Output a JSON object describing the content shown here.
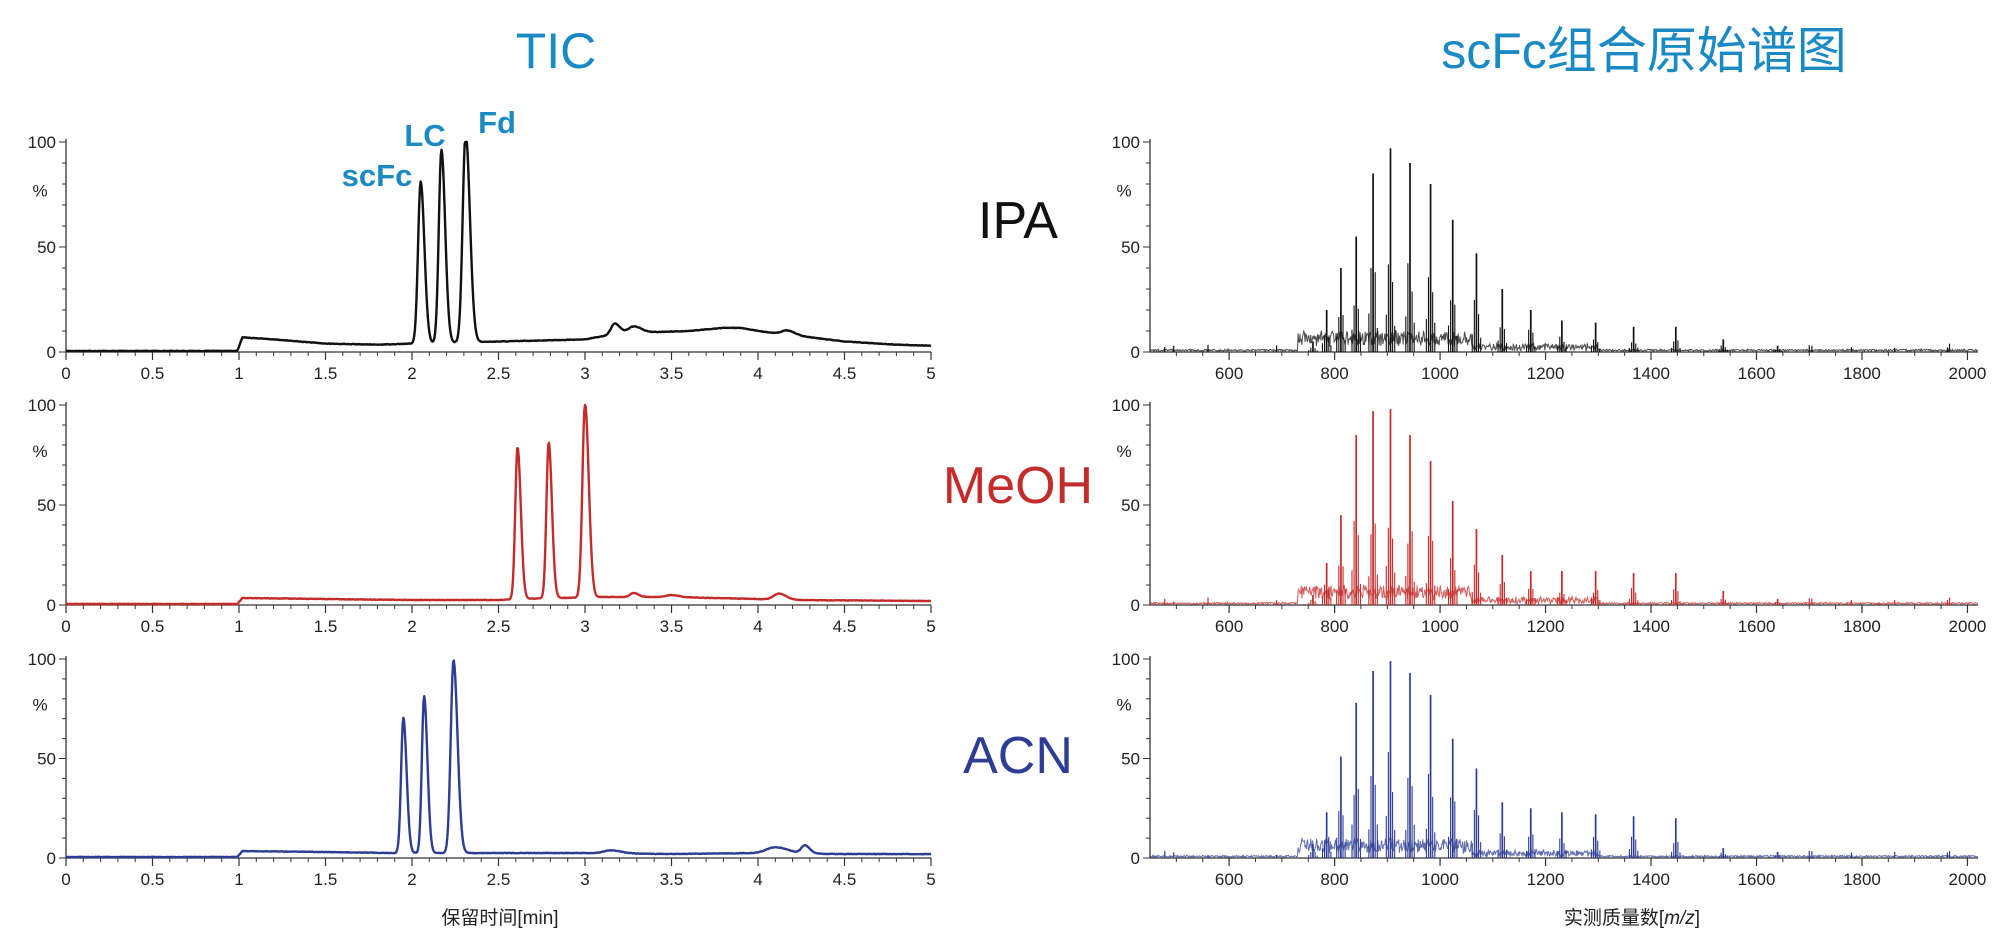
{
  "figure": {
    "left_title": "TIC",
    "right_title": "scFc组合原始谱图",
    "left_xlabel": "保留时间[min]",
    "right_xlabel_prefix": "实测质量数[",
    "right_xlabel_unit": "m/z",
    "right_xlabel_suffix": "]",
    "percent_label": "%",
    "peak_labels": [
      "scFc",
      "LC",
      "Fd"
    ],
    "colors": {
      "title": "#1a8ac4",
      "IPA": "#111111",
      "MeOH": "#c42b2b",
      "ACN": "#2e3d94"
    }
  },
  "chart_data": [
    {
      "type": "line",
      "title": "TIC",
      "xlabel": "保留时间[min]",
      "ylabel": "%",
      "xlim": [
        0,
        5
      ],
      "ylim": [
        0,
        100
      ],
      "xticks": [
        "0",
        "0.5",
        "1",
        "1.5",
        "2",
        "2.5",
        "3",
        "3.5",
        "4",
        "4.5",
        "5"
      ],
      "yticks": [
        "0",
        "50",
        "100"
      ],
      "peak_annotations": [
        {
          "label": "scFc",
          "x": 2.05
        },
        {
          "label": "LC",
          "x": 2.17
        },
        {
          "label": "Fd",
          "x": 2.31
        }
      ],
      "series": [
        {
          "name": "IPA",
          "color": "#111111",
          "baseline": [
            [
              0,
              0.5
            ],
            [
              0.99,
              0.5
            ],
            [
              1.02,
              7
            ],
            [
              1.2,
              6
            ],
            [
              1.5,
              4
            ],
            [
              1.8,
              3.5
            ],
            [
              2.0,
              4
            ],
            [
              3.0,
              6
            ],
            [
              3.2,
              9
            ],
            [
              3.4,
              9.5
            ],
            [
              3.6,
              10
            ],
            [
              3.8,
              11.5
            ],
            [
              3.9,
              11.5
            ],
            [
              4.0,
              10
            ],
            [
              4.2,
              8
            ],
            [
              4.5,
              5
            ],
            [
              4.8,
              3.5
            ],
            [
              5,
              3
            ]
          ],
          "peaks": [
            [
              2.05,
              77,
              0.015
            ],
            [
              2.17,
              92,
              0.015
            ],
            [
              2.31,
              100,
              0.017
            ],
            [
              3.17,
              5,
              0.02
            ],
            [
              3.28,
              3,
              0.03
            ],
            [
              4.17,
              2,
              0.03
            ]
          ]
        },
        {
          "name": "MeOH",
          "color": "#c42b2b",
          "baseline": [
            [
              0,
              0.5
            ],
            [
              0.99,
              0.5
            ],
            [
              1.02,
              3.5
            ],
            [
              1.5,
              3
            ],
            [
              2.0,
              2.5
            ],
            [
              2.5,
              2.5
            ],
            [
              2.6,
              3
            ],
            [
              3.1,
              4
            ],
            [
              3.5,
              4
            ],
            [
              4.0,
              3
            ],
            [
              4.2,
              2.5
            ],
            [
              5,
              2
            ]
          ],
          "peaks": [
            [
              2.61,
              76,
              0.013
            ],
            [
              2.79,
              78,
              0.013
            ],
            [
              3.0,
              97,
              0.015
            ],
            [
              3.28,
              2,
              0.02
            ],
            [
              3.5,
              1,
              0.03
            ],
            [
              4.12,
              3,
              0.03
            ]
          ]
        },
        {
          "name": "ACN",
          "color": "#2e3d94",
          "baseline": [
            [
              0,
              0.5
            ],
            [
              0.99,
              0.5
            ],
            [
              1.02,
              3.5
            ],
            [
              1.5,
              3
            ],
            [
              1.9,
              2.5
            ],
            [
              2.3,
              2.5
            ],
            [
              2.5,
              2.5
            ],
            [
              3.0,
              2.5
            ],
            [
              3.5,
              2
            ],
            [
              4.0,
              2.5
            ],
            [
              4.5,
              2
            ],
            [
              5,
              2
            ]
          ],
          "peaks": [
            [
              1.95,
              68,
              0.013
            ],
            [
              2.07,
              79,
              0.013
            ],
            [
              2.24,
              97,
              0.016
            ],
            [
              3.15,
              1.5,
              0.04
            ],
            [
              4.1,
              3,
              0.05
            ],
            [
              4.27,
              4,
              0.02
            ]
          ]
        }
      ]
    },
    {
      "type": "bar",
      "title": "scFc组合原始谱图",
      "xlabel": "实测质量数[m/z]",
      "ylabel": "%",
      "xlim": [
        450,
        2020
      ],
      "ylim": [
        0,
        100
      ],
      "xticks": [
        "600",
        "800",
        "1000",
        "1200",
        "1400",
        "1600",
        "1800",
        "2000"
      ],
      "yticks": [
        "0",
        "50",
        "100"
      ],
      "peak_mz": [
        759,
        785,
        812,
        841,
        873,
        906,
        943,
        982,
        1024,
        1069,
        1118,
        1172,
        1231,
        1295,
        1367,
        1447,
        1537,
        1640
      ],
      "series": [
        {
          "name": "IPA",
          "color": "#111111",
          "intensities": [
            5,
            20,
            40,
            55,
            85,
            97,
            90,
            80,
            63,
            47,
            30,
            20,
            15,
            14,
            12,
            12,
            6,
            3
          ]
        },
        {
          "name": "MeOH",
          "color": "#c42b2b",
          "intensities": [
            5,
            21,
            45,
            85,
            97,
            98,
            85,
            72,
            52,
            38,
            25,
            17,
            17,
            17,
            16,
            16,
            7,
            3
          ]
        },
        {
          "name": "ACN",
          "color": "#2e3d94",
          "intensities": [
            7,
            23,
            51,
            78,
            94,
            99,
            93,
            82,
            60,
            45,
            28,
            25,
            23,
            22,
            21,
            20,
            5,
            3
          ]
        }
      ]
    }
  ]
}
